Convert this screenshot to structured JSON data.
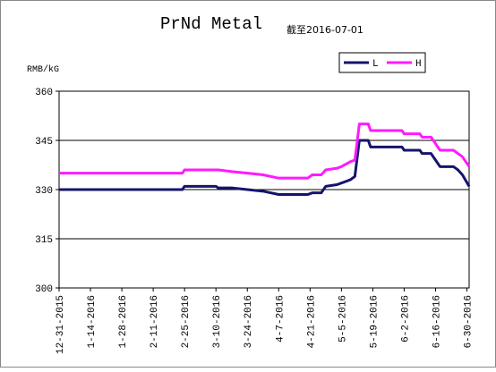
{
  "chart_data": {
    "type": "line",
    "title": "PrNd Metal",
    "subtitle": "截至2016-07-01",
    "y_label": "RMB/kG",
    "x": [
      "12-31-2015",
      "2-24-2016",
      "2-25-2016",
      "3-10-2016",
      "3-11-2016",
      "3-17-2016",
      "3-24-2016",
      "3-31-2016",
      "4-7-2016",
      "4-20-2016",
      "4-22-2016",
      "4-26-2016",
      "4-28-2016",
      "5-3-2016",
      "5-5-2016",
      "5-9-2016",
      "5-11-2016",
      "5-13-2016",
      "5-17-2016",
      "5-18-2016",
      "6-1-2016",
      "6-2-2016",
      "6-9-2016",
      "6-10-2016",
      "6-14-2016",
      "6-16-2016",
      "6-18-2016",
      "6-24-2016",
      "6-26-2016",
      "6-28-2016",
      "7-1-2016"
    ],
    "series": [
      {
        "name": "L",
        "color": "#14146e",
        "values": [
          330,
          330,
          331,
          331,
          330.5,
          330.5,
          330,
          329.5,
          328.5,
          328.5,
          329,
          329,
          331,
          331.5,
          332,
          333,
          334,
          345,
          345,
          343,
          343,
          342,
          342,
          341,
          341,
          339,
          337,
          337,
          336,
          334.5,
          331
        ]
      },
      {
        "name": "H",
        "color": "#ff1aff",
        "values": [
          335,
          335,
          336,
          336,
          336,
          335.5,
          335,
          334.5,
          333.5,
          333.5,
          334.5,
          334.5,
          336,
          336.5,
          337,
          338.5,
          339,
          350,
          350,
          348,
          348,
          347,
          347,
          346,
          346,
          344,
          342,
          342,
          341,
          340,
          337
        ]
      }
    ],
    "xlim": [
      "12-31-2015",
      "7-1-2016"
    ],
    "xticks": [
      "12-31-2015",
      "1-14-2016",
      "1-28-2016",
      "2-11-2016",
      "2-25-2016",
      "3-10-2016",
      "3-24-2016",
      "4-7-2016",
      "4-21-2016",
      "5-5-2016",
      "5-19-2016",
      "6-2-2016",
      "6-16-2016",
      "6-30-2016"
    ],
    "ylim": [
      300,
      360
    ],
    "yticks": [
      300,
      315,
      330,
      345,
      360
    ],
    "grid": true,
    "legend": "top-right"
  }
}
